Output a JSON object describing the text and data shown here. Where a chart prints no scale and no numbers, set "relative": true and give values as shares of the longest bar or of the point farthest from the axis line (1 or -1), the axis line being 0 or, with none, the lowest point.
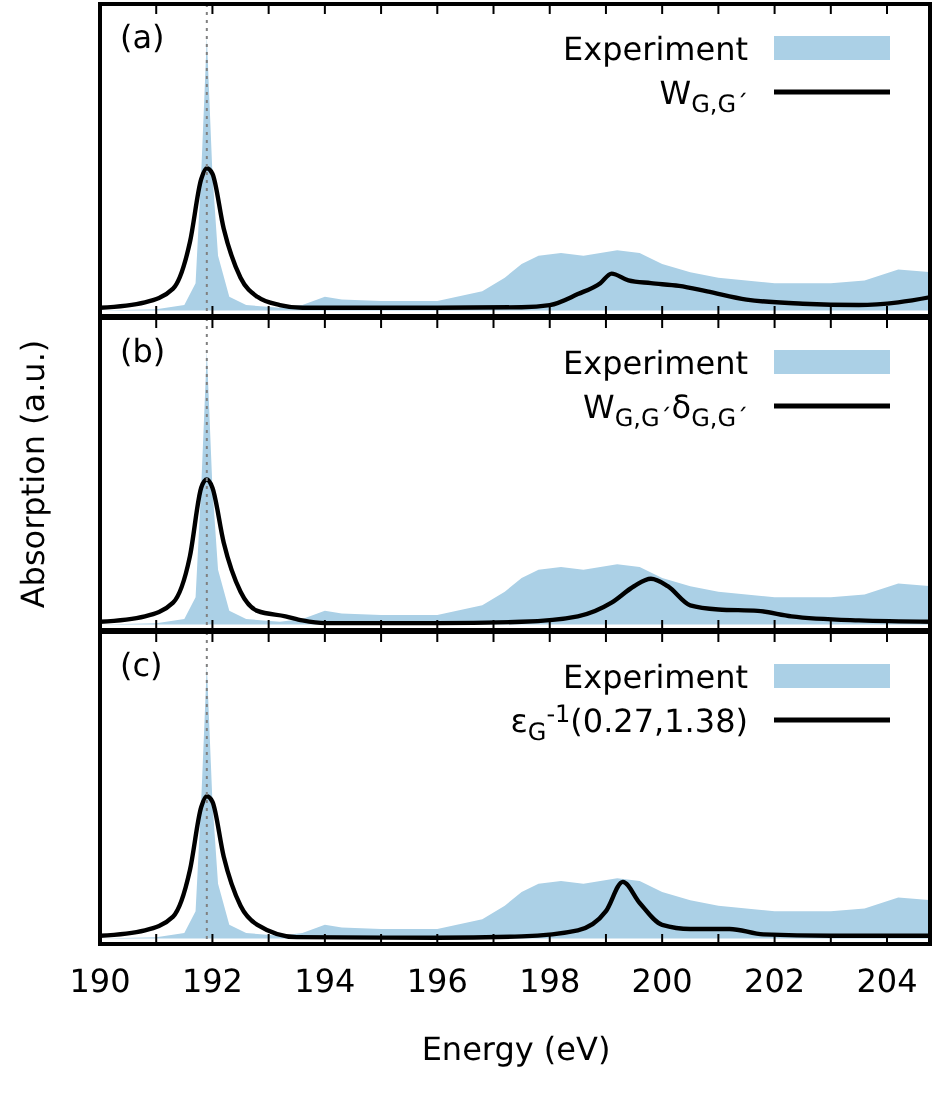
{
  "chart_data": [
    {
      "type": "line",
      "relative": true,
      "annotations": [
        "(a)"
      ],
      "xlim": [
        190,
        204.8
      ],
      "xticks": [
        190,
        {
          "value": 191,
          "label": null
        },
        192,
        {
          "value": 193,
          "label": null
        },
        194,
        {
          "value": 195,
          "label": null
        },
        196,
        {
          "value": 197,
          "label": null
        },
        198,
        {
          "value": 199,
          "label": null
        },
        200,
        {
          "value": 201,
          "label": null
        },
        202,
        {
          "value": 203,
          "label": null
        },
        204
      ],
      "tick_labels": false,
      "legend": "top right",
      "ref_lines": [
        {
          "axis": "x",
          "value": 191.9,
          "color": "#808080",
          "line_style": "dotted"
        }
      ],
      "series": [
        {
          "name": "Experiment",
          "type": "area",
          "color": "#abd0e6",
          "x": [
            190,
            191,
            191.5,
            191.7,
            191.8,
            191.9,
            192,
            192.1,
            192.3,
            192.6,
            193.2,
            193.6,
            194,
            194.3,
            195,
            196,
            196.8,
            197.2,
            197.5,
            197.8,
            198.2,
            198.6,
            199.2,
            199.6,
            200,
            200.5,
            201,
            202,
            203,
            203.6,
            204.2,
            204.8
          ],
          "values": [
            0,
            0.005,
            0.02,
            0.1,
            0.5,
            1,
            0.5,
            0.2,
            0.05,
            0.02,
            0.01,
            0.02,
            0.05,
            0.04,
            0.035,
            0.035,
            0.07,
            0.12,
            0.17,
            0.2,
            0.21,
            0.2,
            0.22,
            0.21,
            0.17,
            0.14,
            0.12,
            0.1,
            0.1,
            0.11,
            0.15,
            0.14
          ]
        },
        {
          "name": "W$_{G,G´}$",
          "color": "#000000",
          "x": [
            190,
            190.8,
            191.3,
            191.6,
            191.8,
            191.9,
            192,
            192.2,
            192.5,
            192.8,
            193.2,
            193.6,
            194.5,
            196,
            197.5,
            198,
            198.5,
            198.9,
            199.1,
            199.4,
            199.8,
            200.3,
            200.8,
            201.5,
            202.5,
            203.5,
            204.2,
            204.8
          ],
          "values": [
            0.01,
            0.03,
            0.08,
            0.25,
            0.48,
            0.52,
            0.5,
            0.3,
            0.12,
            0.05,
            0.02,
            0.01,
            0.01,
            0.01,
            0.012,
            0.02,
            0.06,
            0.1,
            0.135,
            0.11,
            0.1,
            0.09,
            0.07,
            0.04,
            0.025,
            0.02,
            0.03,
            0.05
          ]
        }
      ]
    },
    {
      "type": "line",
      "relative": true,
      "annotations": [
        "(b)"
      ],
      "ylabel": "Absorption (a.u.)",
      "xlim": [
        190,
        204.8
      ],
      "xticks": [
        190,
        {
          "value": 191,
          "label": null
        },
        192,
        {
          "value": 193,
          "label": null
        },
        194,
        {
          "value": 195,
          "label": null
        },
        196,
        {
          "value": 197,
          "label": null
        },
        198,
        {
          "value": 199,
          "label": null
        },
        200,
        {
          "value": 201,
          "label": null
        },
        202,
        {
          "value": 203,
          "label": null
        },
        204
      ],
      "tick_labels": false,
      "legend": "top right",
      "ref_lines": [
        {
          "axis": "x",
          "value": 191.9,
          "color": "#808080",
          "line_style": "dotted"
        }
      ],
      "series": [
        {
          "name": "Experiment",
          "type": "area",
          "color": "#abd0e6",
          "x": [
            190,
            191,
            191.5,
            191.7,
            191.8,
            191.9,
            192,
            192.1,
            192.3,
            192.6,
            193.2,
            193.6,
            194,
            194.3,
            195,
            196,
            196.8,
            197.2,
            197.5,
            197.8,
            198.2,
            198.6,
            199.2,
            199.6,
            200,
            200.5,
            201,
            202,
            203,
            203.6,
            204.2,
            204.8
          ],
          "values": [
            0,
            0.005,
            0.02,
            0.1,
            0.5,
            1,
            0.5,
            0.2,
            0.05,
            0.02,
            0.01,
            0.02,
            0.05,
            0.04,
            0.035,
            0.035,
            0.07,
            0.12,
            0.17,
            0.2,
            0.21,
            0.2,
            0.22,
            0.21,
            0.17,
            0.14,
            0.12,
            0.1,
            0.1,
            0.11,
            0.15,
            0.14
          ]
        },
        {
          "name": "W$_{G,G´}$δ$_{G,G´}$",
          "color": "#000000",
          "x": [
            190,
            190.8,
            191.3,
            191.6,
            191.8,
            191.9,
            192,
            192.2,
            192.5,
            192.8,
            193.3,
            193.6,
            194,
            196,
            197.5,
            198.5,
            199.1,
            199.5,
            199.8,
            200.1,
            200.5,
            201,
            201.7,
            202.3,
            203.5,
            204.8
          ],
          "values": [
            0.01,
            0.03,
            0.08,
            0.25,
            0.5,
            0.53,
            0.5,
            0.3,
            0.12,
            0.05,
            0.03,
            0.015,
            0.005,
            0.005,
            0.01,
            0.03,
            0.08,
            0.14,
            0.167,
            0.14,
            0.07,
            0.055,
            0.05,
            0.03,
            0.015,
            0.01
          ]
        }
      ]
    },
    {
      "type": "line",
      "relative": true,
      "annotations": [
        "(c)"
      ],
      "xlabel": "Energy (eV)",
      "xlim": [
        190,
        204.8
      ],
      "xticks": [
        190,
        {
          "value": 191,
          "label": null
        },
        192,
        {
          "value": 193,
          "label": null
        },
        194,
        {
          "value": 195,
          "label": null
        },
        196,
        {
          "value": 197,
          "label": null
        },
        198,
        {
          "value": 199,
          "label": null
        },
        200,
        {
          "value": 201,
          "label": null
        },
        202,
        {
          "value": 203,
          "label": null
        },
        204
      ],
      "tick_labels": "x",
      "legend": "top right",
      "ref_lines": [
        {
          "axis": "x",
          "value": 191.9,
          "color": "#808080",
          "line_style": "dotted"
        }
      ],
      "series": [
        {
          "name": "Experiment",
          "type": "area",
          "color": "#abd0e6",
          "x": [
            190,
            191,
            191.5,
            191.7,
            191.8,
            191.9,
            192,
            192.1,
            192.3,
            192.6,
            193.2,
            193.6,
            194,
            194.3,
            195,
            196,
            196.8,
            197.2,
            197.5,
            197.8,
            198.2,
            198.6,
            199.2,
            199.6,
            200,
            200.5,
            201,
            202,
            203,
            203.6,
            204.2,
            204.8
          ],
          "values": [
            0,
            0.005,
            0.02,
            0.1,
            0.5,
            1,
            0.5,
            0.2,
            0.05,
            0.02,
            0.01,
            0.02,
            0.05,
            0.04,
            0.035,
            0.035,
            0.07,
            0.12,
            0.17,
            0.2,
            0.21,
            0.2,
            0.22,
            0.21,
            0.17,
            0.14,
            0.12,
            0.1,
            0.1,
            0.11,
            0.15,
            0.14
          ]
        },
        {
          "name": "ε$_{G}$$^{-1}$(0.27,1.38)",
          "color": "#000000",
          "x": [
            190,
            190.8,
            191.3,
            191.6,
            191.8,
            191.9,
            192,
            192.2,
            192.5,
            192.8,
            193.5,
            196,
            197.5,
            198.5,
            199,
            199.3,
            199.6,
            200,
            200.5,
            201.2,
            201.8,
            203,
            204.8
          ],
          "values": [
            0.01,
            0.03,
            0.08,
            0.25,
            0.48,
            0.52,
            0.5,
            0.3,
            0.12,
            0.05,
            0.005,
            0.003,
            0.008,
            0.03,
            0.1,
            0.207,
            0.13,
            0.05,
            0.035,
            0.035,
            0.015,
            0.01,
            0.01
          ]
        }
      ]
    }
  ]
}
